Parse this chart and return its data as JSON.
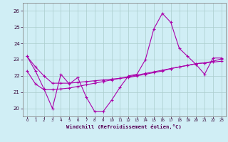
{
  "xlabel": "Windchill (Refroidissement éolien,°C)",
  "bg_color": "#d0eef5",
  "line_color": "#aa00aa",
  "grid_color": "#aacccc",
  "x_hours": [
    0,
    1,
    2,
    3,
    4,
    5,
    6,
    7,
    8,
    9,
    10,
    11,
    12,
    13,
    14,
    15,
    16,
    17,
    18,
    19,
    20,
    21,
    22,
    23
  ],
  "windchill": [
    23.2,
    22.3,
    21.2,
    20.0,
    22.1,
    21.5,
    21.9,
    20.7,
    19.8,
    19.8,
    20.5,
    21.3,
    22.0,
    22.1,
    23.0,
    24.9,
    25.85,
    25.3,
    23.7,
    23.2,
    22.7,
    22.1,
    23.1,
    23.1
  ],
  "trend1_x": [
    0,
    1,
    2,
    3,
    4,
    5,
    6,
    7,
    8,
    9,
    10,
    11,
    12,
    13,
    14,
    15,
    16,
    17,
    18,
    19,
    20,
    21,
    22,
    23
  ],
  "trend1_y": [
    23.2,
    22.55,
    22.0,
    21.55,
    21.55,
    21.55,
    21.6,
    21.65,
    21.7,
    21.75,
    21.8,
    21.85,
    21.9,
    22.0,
    22.1,
    22.2,
    22.3,
    22.45,
    22.55,
    22.65,
    22.75,
    22.8,
    22.9,
    23.05
  ],
  "trend2_x": [
    0,
    1,
    2,
    3,
    4,
    5,
    6,
    7,
    8,
    9,
    10,
    11,
    12,
    13,
    14,
    15,
    16,
    17,
    18,
    19,
    20,
    21,
    22,
    23
  ],
  "trend2_y": [
    22.3,
    21.5,
    21.15,
    21.15,
    21.2,
    21.25,
    21.35,
    21.45,
    21.55,
    21.65,
    21.75,
    21.85,
    21.95,
    22.05,
    22.15,
    22.25,
    22.35,
    22.45,
    22.55,
    22.65,
    22.75,
    22.8,
    22.85,
    22.9
  ],
  "ylim": [
    19.5,
    26.5
  ],
  "yticks": [
    20,
    21,
    22,
    23,
    24,
    25,
    26
  ],
  "xticks": [
    0,
    1,
    2,
    3,
    4,
    5,
    6,
    7,
    8,
    9,
    10,
    11,
    12,
    13,
    14,
    15,
    16,
    17,
    18,
    19,
    20,
    21,
    22,
    23
  ]
}
